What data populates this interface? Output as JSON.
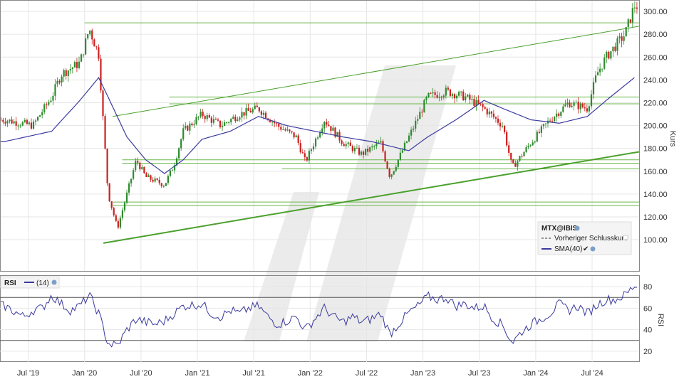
{
  "chart_data": [
    {
      "type": "candlestick",
      "symbol": "MTX@IBIS",
      "ylabel": "Kurs",
      "ylim": [
        72,
        310
      ],
      "yticks": [
        "100.00",
        "120.00",
        "140.00",
        "160.00",
        "180.00",
        "200.00",
        "220.00",
        "240.00",
        "260.00",
        "280.00",
        "300.00"
      ],
      "x_ticks": [
        "Jul '19",
        "Jan '20",
        "Jul '20",
        "Jan '21",
        "Jul '21",
        "Jan '22",
        "Jul '22",
        "Jan '23",
        "Jul '23",
        "Jan '24",
        "Jul '24"
      ],
      "x_range": [
        "2019-04",
        "2024-11"
      ],
      "grid": true,
      "price_anchors": [
        {
          "t": "2019-04",
          "v": 205
        },
        {
          "t": "2019-07",
          "v": 200
        },
        {
          "t": "2019-09",
          "v": 225
        },
        {
          "t": "2019-10",
          "v": 245
        },
        {
          "t": "2019-12",
          "v": 255
        },
        {
          "t": "2020-01",
          "v": 285
        },
        {
          "t": "2020-02",
          "v": 262
        },
        {
          "t": "2020-03",
          "v": 140
        },
        {
          "t": "2020-04",
          "v": 110
        },
        {
          "t": "2020-05",
          "v": 140
        },
        {
          "t": "2020-06",
          "v": 170
        },
        {
          "t": "2020-07",
          "v": 155
        },
        {
          "t": "2020-09",
          "v": 148
        },
        {
          "t": "2020-10",
          "v": 165
        },
        {
          "t": "2020-11",
          "v": 195
        },
        {
          "t": "2021-01",
          "v": 210
        },
        {
          "t": "2021-03",
          "v": 200
        },
        {
          "t": "2021-05",
          "v": 210
        },
        {
          "t": "2021-07",
          "v": 215
        },
        {
          "t": "2021-09",
          "v": 200
        },
        {
          "t": "2021-11",
          "v": 190
        },
        {
          "t": "2021-12",
          "v": 168
        },
        {
          "t": "2022-02",
          "v": 205
        },
        {
          "t": "2022-04",
          "v": 185
        },
        {
          "t": "2022-06",
          "v": 175
        },
        {
          "t": "2022-08",
          "v": 185
        },
        {
          "t": "2022-09",
          "v": 155
        },
        {
          "t": "2022-11",
          "v": 190
        },
        {
          "t": "2023-01",
          "v": 225
        },
        {
          "t": "2023-03",
          "v": 230
        },
        {
          "t": "2023-05",
          "v": 225
        },
        {
          "t": "2023-07",
          "v": 215
        },
        {
          "t": "2023-09",
          "v": 200
        },
        {
          "t": "2023-10",
          "v": 163
        },
        {
          "t": "2023-12",
          "v": 185
        },
        {
          "t": "2024-02",
          "v": 205
        },
        {
          "t": "2024-04",
          "v": 220
        },
        {
          "t": "2024-06",
          "v": 215
        },
        {
          "t": "2024-07",
          "v": 245
        },
        {
          "t": "2024-08",
          "v": 260
        },
        {
          "t": "2024-10",
          "v": 280
        },
        {
          "t": "2024-11",
          "v": 305
        }
      ],
      "sma": {
        "name": "SMA(40)",
        "color": "#3a3a9e",
        "points": [
          {
            "t": "2019-04",
            "v": 186
          },
          {
            "t": "2019-09",
            "v": 195
          },
          {
            "t": "2019-12",
            "v": 222
          },
          {
            "t": "2020-02",
            "v": 242
          },
          {
            "t": "2020-03",
            "v": 225
          },
          {
            "t": "2020-05",
            "v": 190
          },
          {
            "t": "2020-07",
            "v": 170
          },
          {
            "t": "2020-09",
            "v": 158
          },
          {
            "t": "2020-11",
            "v": 170
          },
          {
            "t": "2021-01",
            "v": 188
          },
          {
            "t": "2021-04",
            "v": 195
          },
          {
            "t": "2021-07",
            "v": 208
          },
          {
            "t": "2021-10",
            "v": 200
          },
          {
            "t": "2022-01",
            "v": 195
          },
          {
            "t": "2022-04",
            "v": 190
          },
          {
            "t": "2022-07",
            "v": 186
          },
          {
            "t": "2022-11",
            "v": 178
          },
          {
            "t": "2023-01",
            "v": 190
          },
          {
            "t": "2023-04",
            "v": 205
          },
          {
            "t": "2023-07",
            "v": 222
          },
          {
            "t": "2023-09",
            "v": 215
          },
          {
            "t": "2023-12",
            "v": 205
          },
          {
            "t": "2024-03",
            "v": 202
          },
          {
            "t": "2024-06",
            "v": 208
          },
          {
            "t": "2024-08",
            "v": 222
          },
          {
            "t": "2024-11",
            "v": 242
          }
        ]
      },
      "horizontal_levels": [
        {
          "v": 290,
          "from": "2020-01",
          "to": "2024-11"
        },
        {
          "v": 225,
          "from": "2020-10",
          "to": "2024-11"
        },
        {
          "v": 219,
          "from": "2020-10",
          "to": "2024-11"
        },
        {
          "v": 170,
          "from": "2020-05",
          "to": "2024-11"
        },
        {
          "v": 167,
          "from": "2020-05",
          "to": "2024-11"
        },
        {
          "v": 162,
          "from": "2021-10",
          "to": "2024-11"
        },
        {
          "v": 133,
          "from": "2020-04",
          "to": "2024-11"
        },
        {
          "v": 130,
          "from": "2020-04",
          "to": "2024-11"
        }
      ],
      "trend_lines": [
        {
          "from": {
            "t": "2020-04",
            "v": 208
          },
          "to": {
            "t": "2024-11",
            "v": 287
          },
          "weight": "thin"
        },
        {
          "from": {
            "t": "2020-03",
            "v": 97
          },
          "to": {
            "t": "2024-11",
            "v": 177
          },
          "weight": "thick"
        }
      ],
      "legend": {
        "title": "MTX@IBIS",
        "items": [
          {
            "label": "Vorheriger Schlusskurs",
            "style": "dashed",
            "color": "#333333"
          },
          {
            "label": "SMA(40)",
            "style": "solid",
            "color": "#3a3a9e"
          }
        ]
      },
      "colors": {
        "up": "#2e8b2e",
        "down": "#cc1f1f",
        "levels": "#6ab74a",
        "trend": "#4aa02c"
      }
    },
    {
      "type": "line",
      "name": "RSI",
      "ylabel": "RSI",
      "period": "(14)",
      "ylim": [
        10,
        90
      ],
      "yticks": [
        "20",
        "40",
        "60",
        "80"
      ],
      "reference_lines": [
        30,
        70
      ],
      "color": "#3a3a9e",
      "points": [
        {
          "t": "2019-04",
          "v": 62
        },
        {
          "t": "2019-05",
          "v": 57
        },
        {
          "t": "2019-06",
          "v": 52
        },
        {
          "t": "2019-07",
          "v": 58
        },
        {
          "t": "2019-08",
          "v": 60
        },
        {
          "t": "2019-09",
          "v": 72
        },
        {
          "t": "2019-10",
          "v": 64
        },
        {
          "t": "2019-11",
          "v": 58
        },
        {
          "t": "2019-12",
          "v": 62
        },
        {
          "t": "2020-01",
          "v": 72
        },
        {
          "t": "2020-02",
          "v": 55
        },
        {
          "t": "2020-03",
          "v": 27
        },
        {
          "t": "2020-04",
          "v": 25
        },
        {
          "t": "2020-05",
          "v": 40
        },
        {
          "t": "2020-06",
          "v": 50
        },
        {
          "t": "2020-07",
          "v": 47
        },
        {
          "t": "2020-08",
          "v": 45
        },
        {
          "t": "2020-09",
          "v": 48
        },
        {
          "t": "2020-10",
          "v": 55
        },
        {
          "t": "2020-11",
          "v": 62
        },
        {
          "t": "2021-01",
          "v": 64
        },
        {
          "t": "2021-02",
          "v": 55
        },
        {
          "t": "2021-03",
          "v": 52
        },
        {
          "t": "2021-04",
          "v": 58
        },
        {
          "t": "2021-05",
          "v": 55
        },
        {
          "t": "2021-06",
          "v": 60
        },
        {
          "t": "2021-07",
          "v": 62
        },
        {
          "t": "2021-08",
          "v": 52
        },
        {
          "t": "2021-09",
          "v": 45
        },
        {
          "t": "2021-10",
          "v": 48
        },
        {
          "t": "2021-11",
          "v": 52
        },
        {
          "t": "2021-12",
          "v": 40
        },
        {
          "t": "2022-01",
          "v": 50
        },
        {
          "t": "2022-02",
          "v": 60
        },
        {
          "t": "2022-03",
          "v": 52
        },
        {
          "t": "2022-04",
          "v": 47
        },
        {
          "t": "2022-05",
          "v": 52
        },
        {
          "t": "2022-06",
          "v": 47
        },
        {
          "t": "2022-07",
          "v": 50
        },
        {
          "t": "2022-08",
          "v": 55
        },
        {
          "t": "2022-09",
          "v": 36
        },
        {
          "t": "2022-10",
          "v": 46
        },
        {
          "t": "2022-11",
          "v": 56
        },
        {
          "t": "2022-12",
          "v": 62
        },
        {
          "t": "2023-01",
          "v": 71
        },
        {
          "t": "2023-02",
          "v": 68
        },
        {
          "t": "2023-03",
          "v": 70
        },
        {
          "t": "2023-04",
          "v": 62
        },
        {
          "t": "2023-05",
          "v": 64
        },
        {
          "t": "2023-06",
          "v": 60
        },
        {
          "t": "2023-07",
          "v": 62
        },
        {
          "t": "2023-08",
          "v": 50
        },
        {
          "t": "2023-09",
          "v": 44
        },
        {
          "t": "2023-10",
          "v": 28
        },
        {
          "t": "2023-11",
          "v": 38
        },
        {
          "t": "2023-12",
          "v": 45
        },
        {
          "t": "2024-01",
          "v": 50
        },
        {
          "t": "2024-02",
          "v": 55
        },
        {
          "t": "2024-03",
          "v": 64
        },
        {
          "t": "2024-04",
          "v": 58
        },
        {
          "t": "2024-05",
          "v": 62
        },
        {
          "t": "2024-06",
          "v": 55
        },
        {
          "t": "2024-07",
          "v": 63
        },
        {
          "t": "2024-08",
          "v": 68
        },
        {
          "t": "2024-09",
          "v": 68
        },
        {
          "t": "2024-10",
          "v": 72
        },
        {
          "t": "2024-11",
          "v": 81
        }
      ]
    }
  ]
}
